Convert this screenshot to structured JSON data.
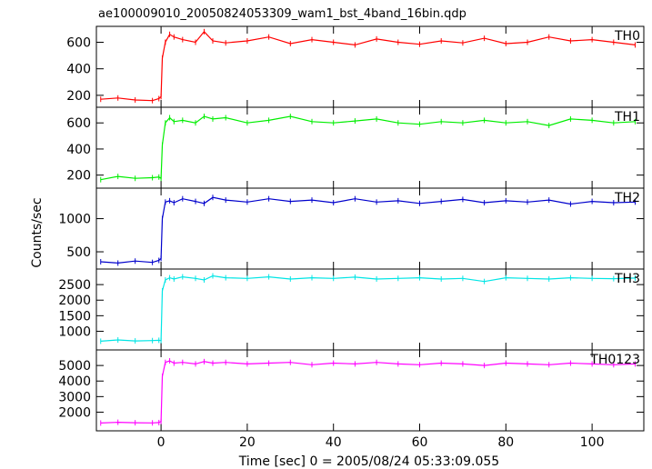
{
  "chart_data": {
    "title": "ae100009010_20050824053309_wam1_bst_4band_16bin.qdp",
    "xlabel": "Time [sec] 0 = 2005/08/24 05:33:09.055",
    "ylabel": "Counts/sec",
    "x_ticks": [
      0,
      20,
      40,
      60,
      80,
      100
    ],
    "xlim": [
      -15,
      112
    ],
    "grid": false,
    "panels": [
      {
        "type": "line",
        "name": "TH0",
        "color": "#ff0000",
        "ylim": [
          110,
          720
        ],
        "y_ticks": [
          200,
          400,
          600
        ],
        "series": [
          {
            "name": "TH0",
            "x": [
              -14,
              -10,
              -6,
              -2,
              -0.5,
              0,
              0.3,
              1,
              2,
              3,
              5,
              8,
              10,
              12,
              15,
              20,
              25,
              30,
              35,
              40,
              45,
              50,
              55,
              60,
              65,
              70,
              75,
              80,
              85,
              90,
              95,
              100,
              105,
              110
            ],
            "y": [
              170,
              180,
              165,
              160,
              175,
              190,
              480,
              600,
              660,
              640,
              620,
              600,
              680,
              610,
              595,
              610,
              640,
              590,
              620,
              600,
              580,
              625,
              600,
              585,
              610,
              595,
              630,
              590,
              600,
              640,
              610,
              620,
              600,
              580
            ]
          }
        ]
      },
      {
        "type": "line",
        "name": "TH1",
        "color": "#00ee00",
        "ylim": [
          100,
          720
        ],
        "y_ticks": [
          200,
          400,
          600
        ],
        "series": [
          {
            "name": "TH1",
            "x": [
              -14,
              -10,
              -6,
              -2,
              -0.5,
              0,
              0.3,
              1,
              2,
              3,
              5,
              8,
              10,
              12,
              15,
              20,
              25,
              30,
              35,
              40,
              45,
              50,
              55,
              60,
              65,
              70,
              75,
              80,
              85,
              90,
              95,
              100,
              105,
              110
            ],
            "y": [
              165,
              190,
              175,
              180,
              185,
              175,
              430,
              600,
              640,
              610,
              620,
              600,
              650,
              630,
              640,
              600,
              620,
              650,
              610,
              600,
              615,
              630,
              600,
              590,
              610,
              600,
              620,
              600,
              610,
              580,
              630,
              620,
              600,
              610
            ]
          }
        ]
      },
      {
        "type": "line",
        "name": "TH2",
        "color": "#0000cc",
        "ylim": [
          240,
          1460
        ],
        "y_ticks": [
          500,
          1000
        ],
        "series": [
          {
            "name": "TH2",
            "x": [
              -14,
              -10,
              -6,
              -2,
              -0.5,
              0,
              0.3,
              1,
              2,
              3,
              5,
              8,
              10,
              12,
              15,
              20,
              25,
              30,
              35,
              40,
              45,
              50,
              55,
              60,
              65,
              70,
              75,
              80,
              85,
              90,
              95,
              100,
              105,
              110
            ],
            "y": [
              350,
              330,
              360,
              340,
              370,
              400,
              1000,
              1250,
              1270,
              1240,
              1300,
              1260,
              1230,
              1320,
              1280,
              1250,
              1300,
              1260,
              1280,
              1240,
              1300,
              1250,
              1270,
              1230,
              1260,
              1290,
              1240,
              1270,
              1250,
              1280,
              1220,
              1260,
              1240,
              1250
            ]
          }
        ]
      },
      {
        "type": "line",
        "name": "TH3",
        "color": "#00e5e5",
        "ylim": [
          400,
          3000
        ],
        "y_ticks": [
          1000,
          1500,
          2000,
          2500
        ],
        "series": [
          {
            "name": "TH3",
            "x": [
              -14,
              -10,
              -6,
              -2,
              -0.5,
              0,
              0.3,
              1,
              2,
              3,
              5,
              8,
              10,
              12,
              15,
              20,
              25,
              30,
              35,
              40,
              45,
              50,
              55,
              60,
              65,
              70,
              75,
              80,
              85,
              90,
              95,
              100,
              105,
              110
            ],
            "y": [
              680,
              720,
              690,
              700,
              710,
              700,
              2300,
              2650,
              2720,
              2680,
              2750,
              2700,
              2650,
              2780,
              2720,
              2700,
              2750,
              2680,
              2720,
              2700,
              2740,
              2680,
              2700,
              2720,
              2680,
              2700,
              2600,
              2720,
              2700,
              2680,
              2720,
              2700,
              2690,
              2710
            ]
          }
        ]
      },
      {
        "type": "line",
        "name": "TH0123",
        "color": "#ff00ff",
        "ylim": [
          800,
          6000
        ],
        "y_ticks": [
          2000,
          3000,
          4000,
          5000
        ],
        "series": [
          {
            "name": "TH0123",
            "x": [
              -14,
              -10,
              -6,
              -2,
              -0.5,
              0,
              0.3,
              1,
              2,
              3,
              5,
              8,
              10,
              12,
              15,
              20,
              25,
              30,
              35,
              40,
              45,
              50,
              55,
              60,
              65,
              70,
              75,
              80,
              85,
              90,
              95,
              100,
              105,
              110
            ],
            "y": [
              1300,
              1350,
              1320,
              1310,
              1330,
              1400,
              4300,
              5200,
              5300,
              5150,
              5200,
              5100,
              5250,
              5150,
              5200,
              5100,
              5150,
              5200,
              5050,
              5150,
              5100,
              5200,
              5100,
              5050,
              5150,
              5100,
              5000,
              5150,
              5100,
              5050,
              5150,
              5100,
              5050,
              5100
            ]
          }
        ]
      }
    ]
  }
}
